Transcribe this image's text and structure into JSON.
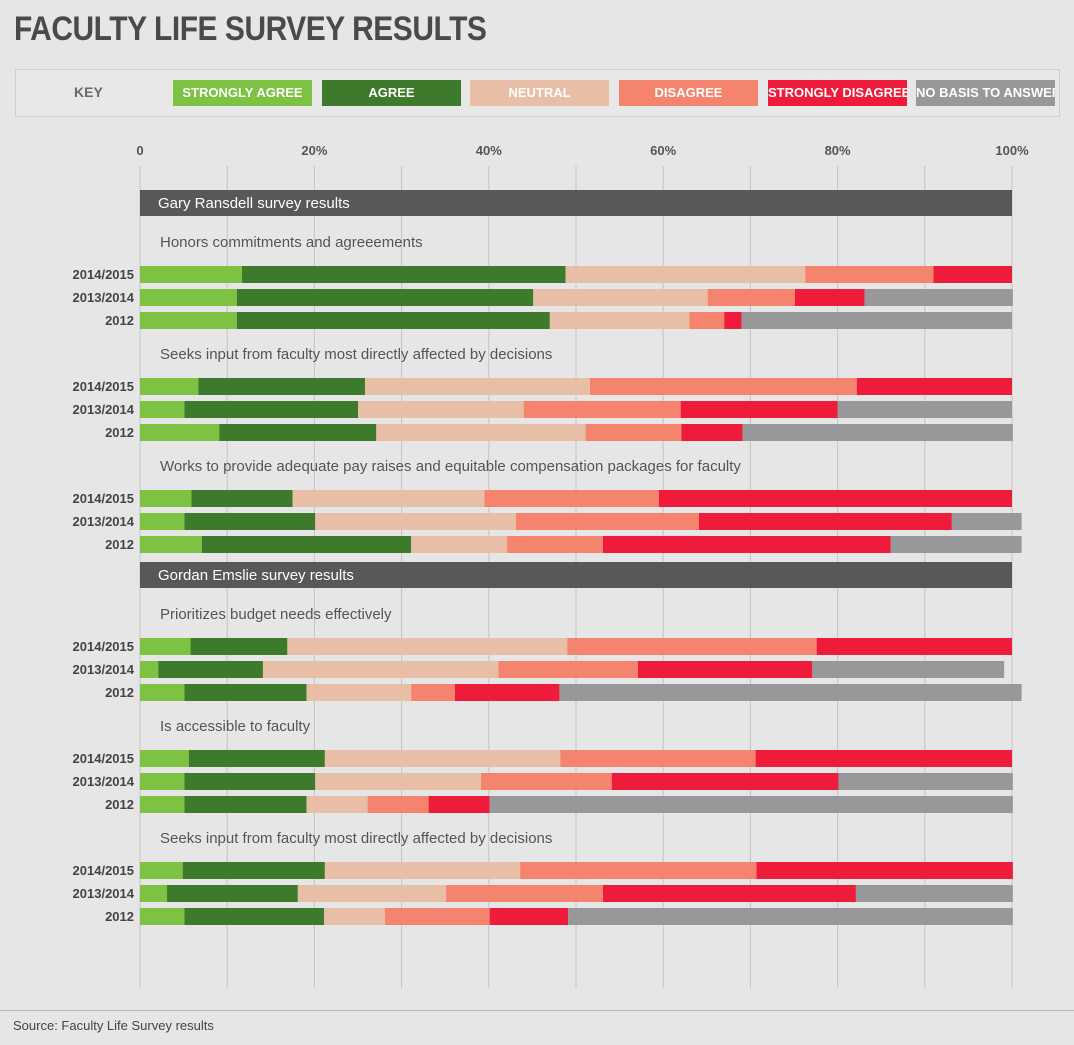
{
  "title": "FACULTY LIFE SURVEY RESULTS",
  "key": {
    "label": "KEY",
    "items": [
      {
        "label": "STRONGLY AGREE",
        "color": "#7dc242"
      },
      {
        "label": "AGREE",
        "color": "#3d7a2c"
      },
      {
        "label": "NEUTRAL",
        "color": "#e8bfa6"
      },
      {
        "label": "DISAGREE",
        "color": "#f4846e"
      },
      {
        "label": "STRONGLY DISAGREE",
        "color": "#ef1b3a"
      },
      {
        "label": "NO BASIS TO ANSWER",
        "color": "#98989a"
      }
    ]
  },
  "source": "Source: Faculty Life Survey results",
  "chart_data": {
    "type": "bar",
    "orientation": "horizontal-stacked",
    "x_ticks": [
      "0",
      "20%",
      "40%",
      "60%",
      "80%",
      "100%"
    ],
    "xlim": [
      0,
      100
    ],
    "series_names": [
      "STRONGLY AGREE",
      "AGREE",
      "NEUTRAL",
      "DISAGREE",
      "STRONGLY DISAGREE",
      "NO BASIS TO ANSWER"
    ],
    "sections": [
      {
        "title": "Gary Ransdell survey results",
        "questions": [
          {
            "title": "Honors commitments and agreeements",
            "rows": [
              {
                "label": "2014/2015",
                "values": [
                  11.7,
                  37.1,
                  27.5,
                  14.7,
                  9.0,
                  0
                ]
              },
              {
                "label": "2013/2014",
                "values": [
                  11.1,
                  34.0,
                  20.0,
                  10.0,
                  8.0,
                  17.0
                ]
              },
              {
                "label": "2012",
                "values": [
                  11.1,
                  35.9,
                  16.0,
                  4.0,
                  2.0,
                  31.0
                ]
              }
            ]
          },
          {
            "title": "Seeks input from faculty most directly affected by decisions",
            "rows": [
              {
                "label": "2014/2015",
                "values": [
                  6.7,
                  19.1,
                  25.8,
                  30.6,
                  17.8,
                  0
                ]
              },
              {
                "label": "2013/2014",
                "values": [
                  5.1,
                  19.9,
                  19.0,
                  18.0,
                  18.0,
                  20.0
                ]
              },
              {
                "label": "2012",
                "values": [
                  9.1,
                  18.0,
                  24.0,
                  11.0,
                  7.0,
                  31.0
                ]
              }
            ]
          },
          {
            "title": "Works to provide adequate pay raises and equitable compensation packages for faculty",
            "rows": [
              {
                "label": "2014/2015",
                "values": [
                  5.9,
                  11.6,
                  22.0,
                  20.0,
                  40.5,
                  0
                ]
              },
              {
                "label": "2013/2014",
                "values": [
                  5.1,
                  15.0,
                  23.0,
                  21.0,
                  29.0,
                  8.0
                ]
              },
              {
                "label": "2012",
                "values": [
                  7.1,
                  24.0,
                  11.0,
                  11.0,
                  33.0,
                  15.0
                ]
              }
            ]
          }
        ]
      },
      {
        "title": "Gordan Emslie survey results",
        "questions": [
          {
            "title": "Prioritizes budget needs effectively",
            "rows": [
              {
                "label": "2014/2015",
                "values": [
                  5.8,
                  11.1,
                  32.1,
                  28.6,
                  22.4,
                  0
                ]
              },
              {
                "label": "2013/2014",
                "values": [
                  2.1,
                  12.0,
                  27.0,
                  16.0,
                  20.0,
                  22.0
                ]
              },
              {
                "label": "2012",
                "values": [
                  5.1,
                  14.0,
                  12.0,
                  5.0,
                  12.0,
                  53.0
                ]
              }
            ]
          },
          {
            "title": "Is accessible to faculty",
            "rows": [
              {
                "label": "2014/2015",
                "values": [
                  5.6,
                  15.6,
                  27.0,
                  22.4,
                  29.4,
                  0
                ]
              },
              {
                "label": "2013/2014",
                "values": [
                  5.1,
                  15.0,
                  19.0,
                  15.0,
                  26.0,
                  20.0
                ]
              },
              {
                "label": "2012",
                "values": [
                  5.1,
                  14.0,
                  7.0,
                  7.0,
                  7.0,
                  60.0
                ]
              }
            ]
          },
          {
            "title": "Seeks input from faculty most directly affected by decisions",
            "rows": [
              {
                "label": "2014/2015",
                "values": [
                  4.9,
                  16.3,
                  22.4,
                  27.1,
                  29.4,
                  0
                ]
              },
              {
                "label": "2013/2014",
                "values": [
                  3.1,
                  15.0,
                  17.0,
                  18.0,
                  29.0,
                  18.0
                ]
              },
              {
                "label": "2012",
                "values": [
                  5.1,
                  16.0,
                  7.0,
                  12.0,
                  9.0,
                  51.0
                ]
              }
            ]
          }
        ]
      }
    ]
  }
}
